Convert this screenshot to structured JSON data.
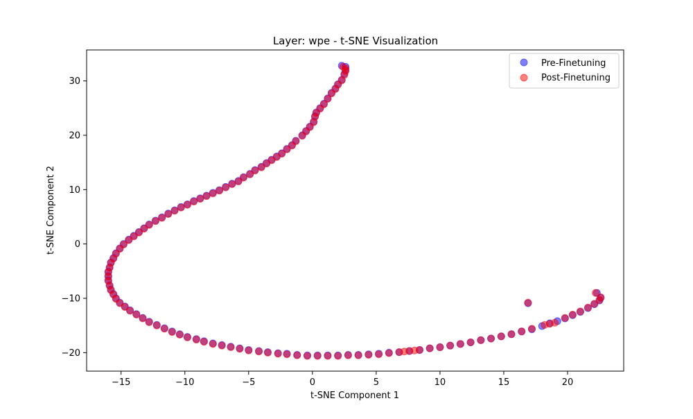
{
  "chart_data": {
    "type": "scatter",
    "title": "Layer: wpe - t-SNE Visualization",
    "xlabel": "t-SNE Component 1",
    "ylabel": "t-SNE Component 2",
    "xlim": [
      -17.7,
      24.4
    ],
    "ylim": [
      -23.4,
      35.7
    ],
    "xticks": [
      -15,
      -10,
      -5,
      0,
      5,
      10,
      15,
      20
    ],
    "yticks": [
      -20,
      -10,
      0,
      10,
      20,
      30
    ],
    "grid": false,
    "legend_position": "top-right",
    "series": [
      {
        "name": "Pre-Finetuning",
        "color": "#0000ff",
        "opacity": 0.5,
        "points": [
          [
            2.3,
            32.8
          ],
          [
            2.6,
            32.6
          ],
          [
            2.6,
            32.0
          ],
          [
            2.5,
            31.3
          ],
          [
            2.3,
            30.2
          ],
          [
            2.0,
            29.4
          ],
          [
            1.8,
            28.6
          ],
          [
            1.5,
            27.8
          ],
          [
            1.2,
            26.8
          ],
          [
            0.9,
            25.8
          ],
          [
            0.6,
            25.0
          ],
          [
            0.3,
            24.2
          ],
          [
            0.2,
            23.5
          ],
          [
            0.1,
            22.5
          ],
          [
            -0.2,
            21.6
          ],
          [
            -0.5,
            20.8
          ],
          [
            -0.8,
            20.0
          ],
          [
            -1.3,
            19.0
          ],
          [
            -1.6,
            18.2
          ],
          [
            -2.0,
            17.5
          ],
          [
            -2.4,
            16.7
          ],
          [
            -2.8,
            16.1
          ],
          [
            -3.2,
            15.5
          ],
          [
            -3.6,
            14.9
          ],
          [
            -4.0,
            14.2
          ],
          [
            -4.5,
            13.6
          ],
          [
            -4.9,
            12.9
          ],
          [
            -5.4,
            12.3
          ],
          [
            -5.8,
            11.6
          ],
          [
            -6.3,
            11.1
          ],
          [
            -6.8,
            10.5
          ],
          [
            -7.3,
            9.9
          ],
          [
            -7.8,
            9.4
          ],
          [
            -8.3,
            8.9
          ],
          [
            -8.8,
            8.4
          ],
          [
            -9.3,
            7.9
          ],
          [
            -9.8,
            7.3
          ],
          [
            -10.3,
            6.8
          ],
          [
            -10.8,
            6.2
          ],
          [
            -11.3,
            5.6
          ],
          [
            -11.8,
            4.9
          ],
          [
            -12.3,
            4.3
          ],
          [
            -12.8,
            3.6
          ],
          [
            -13.2,
            2.9
          ],
          [
            -13.6,
            2.2
          ],
          [
            -14.0,
            1.5
          ],
          [
            -14.4,
            0.8
          ],
          [
            -14.8,
            0.0
          ],
          [
            -15.1,
            -0.8
          ],
          [
            -15.4,
            -1.7
          ],
          [
            -15.6,
            -2.6
          ],
          [
            -15.8,
            -3.4
          ],
          [
            -15.9,
            -4.3
          ],
          [
            -16.0,
            -5.1
          ],
          [
            -16.0,
            -5.9
          ],
          [
            -16.0,
            -6.7
          ],
          [
            -15.9,
            -7.6
          ],
          [
            -15.8,
            -8.4
          ],
          [
            -15.6,
            -9.2
          ],
          [
            -15.4,
            -10.0
          ],
          [
            -15.1,
            -10.8
          ],
          [
            -14.7,
            -11.5
          ],
          [
            -14.3,
            -12.2
          ],
          [
            -13.8,
            -12.9
          ],
          [
            -13.3,
            -13.6
          ],
          [
            -12.8,
            -14.3
          ],
          [
            -12.2,
            -14.9
          ],
          [
            -11.6,
            -15.5
          ],
          [
            -11.0,
            -16.1
          ],
          [
            -10.4,
            -16.6
          ],
          [
            -9.8,
            -17.1
          ],
          [
            -9.1,
            -17.5
          ],
          [
            -8.5,
            -17.9
          ],
          [
            -7.8,
            -18.3
          ],
          [
            -7.1,
            -18.6
          ],
          [
            -6.4,
            -18.9
          ],
          [
            -5.7,
            -19.2
          ],
          [
            -5.0,
            -19.5
          ],
          [
            -4.2,
            -19.7
          ],
          [
            -3.5,
            -19.9
          ],
          [
            -2.7,
            -20.1
          ],
          [
            -2.0,
            -20.2
          ],
          [
            -1.2,
            -20.4
          ],
          [
            -0.4,
            -20.5
          ],
          [
            0.4,
            -20.5
          ],
          [
            1.2,
            -20.5
          ],
          [
            2.0,
            -20.5
          ],
          [
            2.8,
            -20.4
          ],
          [
            3.6,
            -20.4
          ],
          [
            4.4,
            -20.3
          ],
          [
            5.2,
            -20.2
          ],
          [
            6.0,
            -20.0
          ],
          [
            6.8,
            -19.9
          ],
          [
            7.6,
            -19.7
          ],
          [
            8.4,
            -19.5
          ],
          [
            9.2,
            -19.2
          ],
          [
            10.0,
            -19.0
          ],
          [
            10.8,
            -18.7
          ],
          [
            11.6,
            -18.4
          ],
          [
            12.4,
            -18.1
          ],
          [
            13.2,
            -17.7
          ],
          [
            14.0,
            -17.4
          ],
          [
            14.8,
            -17.0
          ],
          [
            15.6,
            -16.6
          ],
          [
            16.4,
            -16.1
          ],
          [
            17.2,
            -15.7
          ],
          [
            18.0,
            -15.1
          ],
          [
            18.6,
            -14.6
          ],
          [
            19.2,
            -14.2
          ],
          [
            19.8,
            -13.7
          ],
          [
            20.4,
            -13.1
          ],
          [
            21.0,
            -12.5
          ],
          [
            21.6,
            -11.8
          ],
          [
            22.1,
            -11.1
          ],
          [
            22.5,
            -10.4
          ],
          [
            22.6,
            -9.9
          ],
          [
            22.3,
            -9.0
          ],
          [
            16.9,
            -10.9
          ]
        ]
      },
      {
        "name": "Post-Finetuning",
        "color": "#ff0000",
        "opacity": 0.5,
        "points": [
          [
            2.4,
            32.6
          ],
          [
            2.6,
            32.3
          ],
          [
            2.6,
            31.8
          ],
          [
            2.5,
            31.1
          ],
          [
            2.3,
            30.1
          ],
          [
            2.0,
            29.3
          ],
          [
            1.8,
            28.5
          ],
          [
            1.5,
            27.7
          ],
          [
            1.2,
            26.7
          ],
          [
            0.9,
            25.7
          ],
          [
            0.6,
            24.9
          ],
          [
            0.3,
            24.1
          ],
          [
            0.2,
            23.4
          ],
          [
            0.1,
            22.4
          ],
          [
            -0.2,
            21.5
          ],
          [
            -0.5,
            20.7
          ],
          [
            -0.8,
            19.9
          ],
          [
            -1.3,
            18.9
          ],
          [
            -1.6,
            18.1
          ],
          [
            -2.0,
            17.4
          ],
          [
            -2.4,
            16.6
          ],
          [
            -2.8,
            16.0
          ],
          [
            -3.2,
            15.4
          ],
          [
            -3.6,
            14.8
          ],
          [
            -4.0,
            14.1
          ],
          [
            -4.5,
            13.5
          ],
          [
            -4.9,
            12.8
          ],
          [
            -5.4,
            12.2
          ],
          [
            -5.8,
            11.5
          ],
          [
            -6.3,
            11.0
          ],
          [
            -6.8,
            10.4
          ],
          [
            -7.3,
            9.8
          ],
          [
            -7.8,
            9.3
          ],
          [
            -8.3,
            8.8
          ],
          [
            -8.8,
            8.3
          ],
          [
            -9.3,
            7.8
          ],
          [
            -9.8,
            7.2
          ],
          [
            -10.3,
            6.7
          ],
          [
            -10.8,
            6.1
          ],
          [
            -11.3,
            5.5
          ],
          [
            -11.8,
            4.8
          ],
          [
            -12.3,
            4.2
          ],
          [
            -12.8,
            3.5
          ],
          [
            -13.2,
            2.8
          ],
          [
            -13.6,
            2.1
          ],
          [
            -14.0,
            1.4
          ],
          [
            -14.4,
            0.7
          ],
          [
            -14.8,
            -0.1
          ],
          [
            -15.1,
            -0.9
          ],
          [
            -15.4,
            -1.8
          ],
          [
            -15.6,
            -2.7
          ],
          [
            -15.8,
            -3.5
          ],
          [
            -15.9,
            -4.4
          ],
          [
            -16.0,
            -5.2
          ],
          [
            -16.0,
            -6.0
          ],
          [
            -16.0,
            -6.8
          ],
          [
            -15.9,
            -7.7
          ],
          [
            -15.8,
            -8.5
          ],
          [
            -15.6,
            -9.3
          ],
          [
            -15.4,
            -10.1
          ],
          [
            -15.1,
            -10.9
          ],
          [
            -14.7,
            -11.6
          ],
          [
            -14.3,
            -12.3
          ],
          [
            -13.8,
            -13.0
          ],
          [
            -13.3,
            -13.7
          ],
          [
            -12.8,
            -14.4
          ],
          [
            -12.2,
            -15.0
          ],
          [
            -11.6,
            -15.6
          ],
          [
            -11.0,
            -16.2
          ],
          [
            -10.4,
            -16.7
          ],
          [
            -9.8,
            -17.2
          ],
          [
            -9.1,
            -17.6
          ],
          [
            -8.5,
            -18.0
          ],
          [
            -7.8,
            -18.4
          ],
          [
            -7.1,
            -18.7
          ],
          [
            -6.4,
            -19.0
          ],
          [
            -5.7,
            -19.3
          ],
          [
            -5.0,
            -19.6
          ],
          [
            -4.2,
            -19.8
          ],
          [
            -3.5,
            -20.0
          ],
          [
            -2.7,
            -20.2
          ],
          [
            -2.0,
            -20.3
          ],
          [
            -1.2,
            -20.5
          ],
          [
            -0.4,
            -20.6
          ],
          [
            0.4,
            -20.6
          ],
          [
            1.2,
            -20.6
          ],
          [
            2.0,
            -20.6
          ],
          [
            2.8,
            -20.5
          ],
          [
            3.6,
            -20.5
          ],
          [
            4.4,
            -20.4
          ],
          [
            5.2,
            -20.3
          ],
          [
            6.0,
            -20.1
          ],
          [
            6.8,
            -19.9
          ],
          [
            7.2,
            -19.8
          ],
          [
            7.6,
            -19.7
          ],
          [
            8.0,
            -19.6
          ],
          [
            8.4,
            -19.5
          ],
          [
            9.2,
            -19.2
          ],
          [
            10.0,
            -19.0
          ],
          [
            10.8,
            -18.7
          ],
          [
            11.6,
            -18.4
          ],
          [
            12.4,
            -18.1
          ],
          [
            13.2,
            -17.7
          ],
          [
            14.0,
            -17.4
          ],
          [
            14.8,
            -17.0
          ],
          [
            15.6,
            -16.6
          ],
          [
            16.4,
            -16.1
          ],
          [
            17.2,
            -15.6
          ],
          [
            18.2,
            -14.9
          ],
          [
            18.6,
            -14.7
          ],
          [
            19.0,
            -14.5
          ],
          [
            19.8,
            -13.6
          ],
          [
            20.4,
            -13.0
          ],
          [
            21.0,
            -12.4
          ],
          [
            21.6,
            -11.7
          ],
          [
            22.1,
            -11.0
          ],
          [
            22.5,
            -10.3
          ],
          [
            22.6,
            -9.8
          ],
          [
            22.2,
            -9.0
          ],
          [
            16.9,
            -10.8
          ]
        ]
      }
    ]
  }
}
